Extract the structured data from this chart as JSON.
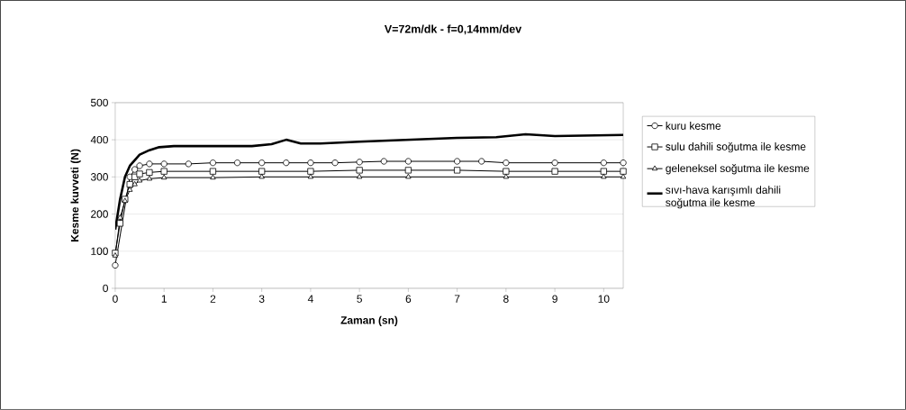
{
  "chart_data": {
    "type": "line",
    "title": "V=72m/dk - f=0,14mm/dev",
    "xlabel": "Zaman (sn)",
    "ylabel": "Kesme kuvveti (N)",
    "xlim": [
      0,
      10.4
    ],
    "xticks": [
      0,
      1,
      2,
      3,
      4,
      5,
      6,
      7,
      8,
      9,
      10
    ],
    "ylim": [
      0,
      500
    ],
    "yticks": [
      0,
      100,
      200,
      300,
      400,
      500
    ],
    "grid": "y",
    "legend": "right",
    "line_style": "solid",
    "series": [
      {
        "name": "kuru kesme",
        "color": "#000000",
        "marker": "circle",
        "x": [
          0,
          0.1,
          0.2,
          0.3,
          0.4,
          0.5,
          0.7,
          1,
          1.5,
          2,
          2.5,
          3,
          3.5,
          4,
          4.5,
          5,
          5.5,
          6,
          7,
          7.5,
          8,
          9,
          10,
          10.4
        ],
        "values": [
          62,
          null,
          null,
          300,
          320,
          330,
          335,
          335,
          335,
          338,
          338,
          338,
          338,
          338,
          338,
          340,
          342,
          342,
          342,
          342,
          338,
          338,
          338,
          338
        ]
      },
      {
        "name": "sulu dahili soğutma ile kesme",
        "color": "#000000",
        "marker": "square",
        "x": [
          0,
          0.1,
          0.2,
          0.3,
          0.4,
          0.5,
          0.7,
          1,
          2,
          3,
          4,
          5,
          6,
          7,
          8,
          9,
          10,
          10.4
        ],
        "values": [
          95,
          175,
          240,
          280,
          300,
          308,
          312,
          315,
          315,
          315,
          315,
          318,
          318,
          318,
          315,
          315,
          315,
          315
        ]
      },
      {
        "name": "geleneksel soğutma ile kesme",
        "color": "#000000",
        "marker": "triangle",
        "x": [
          0,
          0.1,
          0.2,
          0.3,
          0.4,
          0.5,
          0.7,
          1,
          2,
          3,
          4,
          5,
          6,
          8,
          10,
          10.4
        ],
        "values": [
          88,
          190,
          235,
          265,
          280,
          290,
          295,
          298,
          298,
          300,
          300,
          300,
          300,
          300,
          300,
          300
        ]
      },
      {
        "name": "sıvı-hava karışımlı dahili soğutma ile kesme",
        "color": "#000000",
        "marker": "none",
        "x": [
          0,
          0.1,
          0.2,
          0.3,
          0.4,
          0.5,
          0.7,
          0.9,
          1.2,
          2,
          2.8,
          3.2,
          3.5,
          3.8,
          4.2,
          5,
          6,
          7,
          7.8,
          8.4,
          9,
          10.4
        ],
        "values": [
          158,
          240,
          300,
          330,
          345,
          360,
          372,
          380,
          383,
          383,
          383,
          388,
          400,
          390,
          390,
          395,
          400,
          405,
          407,
          415,
          410,
          413
        ]
      }
    ]
  }
}
